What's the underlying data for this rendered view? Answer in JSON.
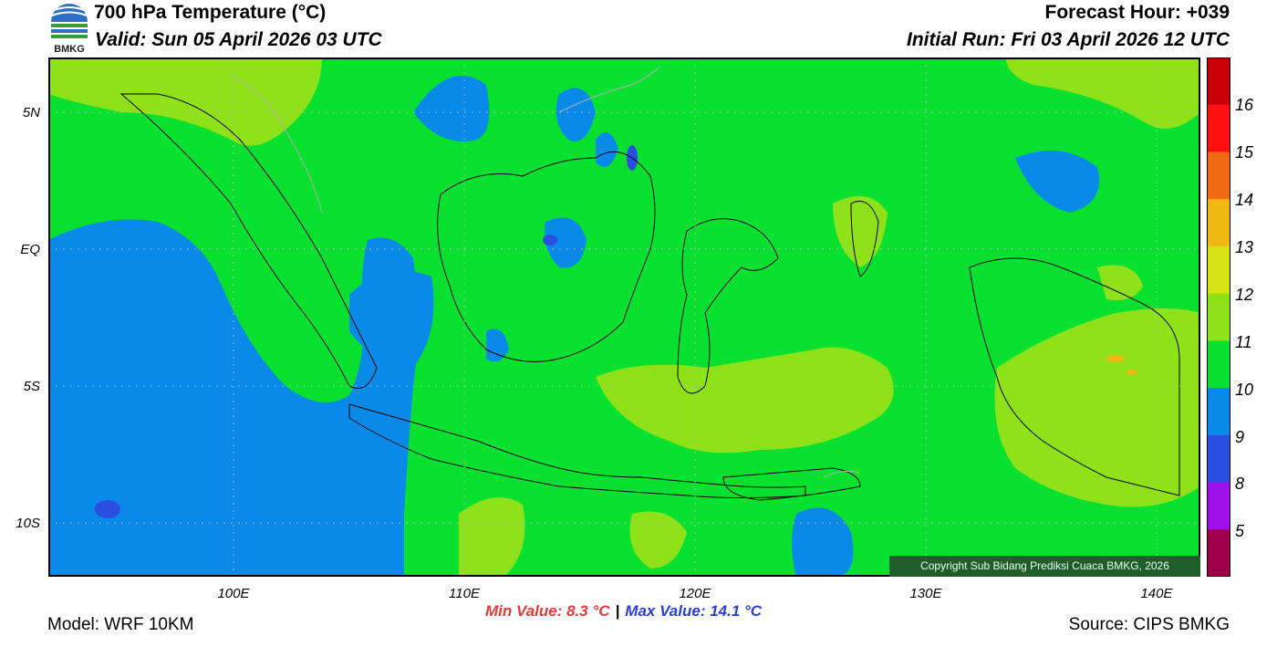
{
  "header": {
    "title": "700 hPa Temperature (°C)",
    "valid": "Valid: Sun 05 April 2026 03 UTC",
    "forecast_hour": "Forecast Hour: +039",
    "initial_run": "Initial Run: Fri 03 April 2026 12 UTC",
    "logo_text": "BMKG"
  },
  "map": {
    "lat_labels": [
      "5N",
      "EQ",
      "5S",
      "10S"
    ],
    "lon_labels": [
      "100E",
      "110E",
      "120E",
      "130E",
      "140E"
    ],
    "copyright": "Copyright Sub Bidang Prediksi Cuaca BMKG, 2026"
  },
  "colorbar": {
    "labels": [
      "16",
      "15",
      "14",
      "13",
      "12",
      "11",
      "10",
      "9",
      "8",
      "5"
    ],
    "colors": [
      "#c8000a",
      "#ff1010",
      "#f06a10",
      "#f0b812",
      "#d6e412",
      "#8fe21a",
      "#0ae030",
      "#0a8ae8",
      "#2a4ee0",
      "#a010e8",
      "#a0004a"
    ]
  },
  "stats": {
    "min": "Min Value: 8.3 °C",
    "separator": "|",
    "max": "Max Value: 14.1 °C"
  },
  "footer": {
    "model": "Model: WRF 10KM",
    "source": "Source: CIPS BMKG"
  }
}
